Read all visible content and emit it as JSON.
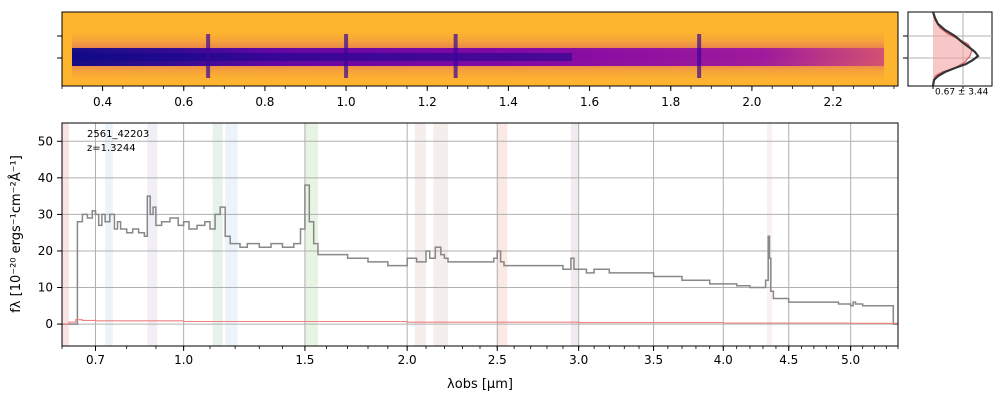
{
  "spectrum2d": {
    "top_ticks": [
      "0.4",
      "0.6",
      "0.8",
      "1.0",
      "1.2",
      "1.4",
      "1.6",
      "1.8",
      "2.0",
      "2.2"
    ],
    "emission_lines_um": [
      0.66,
      1.0,
      1.27,
      1.87
    ]
  },
  "profile_panel": {
    "label": "0.67 ± 3.44"
  },
  "chart_data": {
    "type": "line",
    "object_id": "2561_42203",
    "redshift_label": "z=1.3244",
    "xlabel": "λobs [μm]",
    "ylabel": "fλ [10⁻²⁰ ergs⁻¹cm⁻²Å⁻¹]",
    "xlim": [
      0.6,
      5.4
    ],
    "ylim": [
      -6,
      55
    ],
    "x_scale": "nonlinear (approximately sqrt)",
    "grid": true,
    "xticks": [
      "0.7",
      "1.0",
      "1.5",
      "2.0",
      "2.5",
      "3.0",
      "3.5",
      "4.0",
      "4.5",
      "5.0"
    ],
    "yticks": [
      "0",
      "10",
      "20",
      "30",
      "40",
      "50"
    ],
    "line_bands": [
      {
        "x": [
          0.6,
          0.62
        ],
        "color": "#f2c0c0"
      },
      {
        "x": [
          0.73,
          0.755
        ],
        "color": "#d6e6f2"
      },
      {
        "x": [
          0.87,
          0.905
        ],
        "color": "#e3d9e8"
      },
      {
        "x": [
          1.11,
          1.15
        ],
        "color": "#c9e2d3"
      },
      {
        "x": [
          1.16,
          1.21
        ],
        "color": "#d6e6f2"
      },
      {
        "x": [
          1.5,
          1.56
        ],
        "color": "#c9e6c3"
      },
      {
        "x": [
          2.04,
          2.1
        ],
        "color": "#ead7d7"
      },
      {
        "x": [
          2.14,
          2.22
        ],
        "color": "#ead7d7"
      },
      {
        "x": [
          2.5,
          2.56
        ],
        "color": "#f6cfc6"
      },
      {
        "x": [
          2.95,
          3.0
        ],
        "color": "#e0d0e0"
      },
      {
        "x": [
          4.33,
          4.37
        ],
        "color": "#f2dde4"
      }
    ],
    "series": [
      {
        "color": "#888888",
        "x": [
          0.6,
          0.64,
          0.645,
          0.66,
          0.675,
          0.69,
          0.7,
          0.71,
          0.72,
          0.73,
          0.745,
          0.76,
          0.77,
          0.78,
          0.8,
          0.82,
          0.84,
          0.86,
          0.87,
          0.88,
          0.89,
          0.9,
          0.92,
          0.95,
          0.98,
          1.0,
          1.02,
          1.05,
          1.08,
          1.1,
          1.12,
          1.14,
          1.16,
          1.18,
          1.2,
          1.22,
          1.25,
          1.3,
          1.35,
          1.4,
          1.45,
          1.48,
          1.5,
          1.52,
          1.54,
          1.56,
          1.6,
          1.7,
          1.8,
          1.9,
          2.0,
          2.05,
          2.1,
          2.12,
          2.15,
          2.18,
          2.2,
          2.22,
          2.3,
          2.4,
          2.48,
          2.5,
          2.52,
          2.54,
          2.6,
          2.7,
          2.8,
          2.9,
          2.95,
          2.97,
          3.0,
          3.05,
          3.1,
          3.2,
          3.3,
          3.5,
          3.7,
          3.9,
          4.0,
          4.1,
          4.2,
          4.3,
          4.32,
          4.34,
          4.35,
          4.36,
          4.38,
          4.5,
          4.6,
          4.7,
          4.8,
          4.9,
          5.0,
          5.02,
          5.04,
          5.1,
          5.2,
          5.3,
          5.35,
          5.36,
          5.4
        ],
        "y": [
          0,
          0,
          28,
          30,
          29,
          31,
          30,
          27,
          30,
          28,
          30,
          26,
          28,
          26,
          25,
          26,
          25,
          24,
          35,
          30,
          32,
          27,
          28,
          29,
          27,
          28,
          26,
          27,
          28,
          26,
          30,
          32,
          24,
          22,
          22,
          21,
          22,
          21,
          22,
          21,
          22,
          26,
          38,
          28,
          22,
          19,
          19,
          18,
          17,
          16,
          18,
          17,
          20,
          18,
          21,
          19,
          18,
          17,
          17,
          17,
          18,
          20,
          17,
          16,
          16,
          16,
          16,
          15,
          18,
          15,
          15,
          14,
          15,
          14,
          14,
          13,
          12,
          11,
          11,
          10.5,
          10,
          10,
          12,
          24,
          18,
          9,
          7,
          6,
          6,
          6,
          6,
          5.5,
          5,
          6,
          5.5,
          5,
          5,
          5,
          5,
          0,
          0
        ]
      },
      {
        "color": "#f08080",
        "x": [
          0.6,
          0.62,
          0.64,
          0.66,
          0.7,
          1.0,
          2.0,
          3.0,
          4.0,
          5.0,
          5.4
        ],
        "y": [
          0,
          0.5,
          1.2,
          1.0,
          0.9,
          0.7,
          0.5,
          0.4,
          0.3,
          0.2,
          0.2
        ]
      }
    ]
  }
}
